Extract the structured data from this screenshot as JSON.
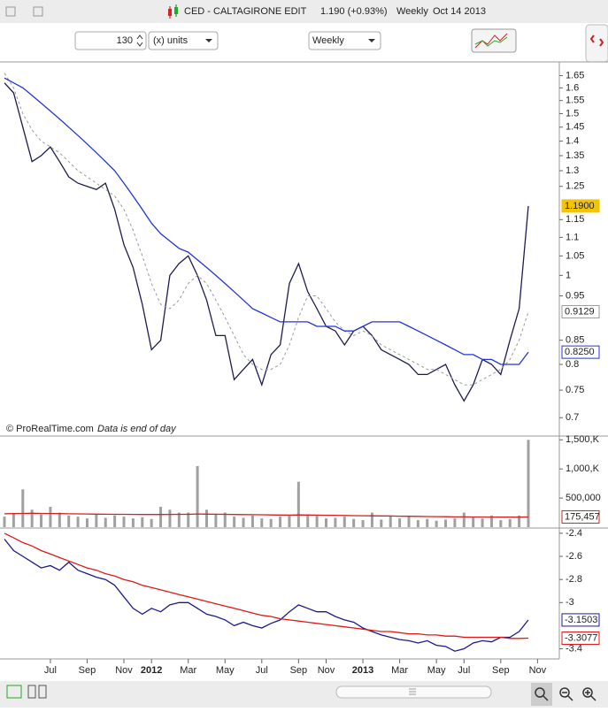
{
  "header": {
    "symbol": "CED - CALTAGIRONE EDIT",
    "quote": "1.190 (+0.93%)",
    "period": "Weekly",
    "date": "Oct 14 2013"
  },
  "toolbar": {
    "units_count": "130",
    "units": "(x) units",
    "period": "Weekly"
  },
  "credit": {
    "site": "© ProRealTime.com",
    "note": "Data is end of day"
  },
  "chart_data": [
    {
      "type": "line",
      "log_scale": true,
      "grid": false,
      "ylim": [
        0.67,
        1.7
      ],
      "yticks": [
        0.7,
        0.75,
        0.8,
        0.85,
        0.95,
        1,
        1.05,
        1.1,
        1.15,
        1.25,
        1.3,
        1.35,
        1.4,
        1.45,
        1.5,
        1.55,
        1.6,
        1.65
      ],
      "series": [
        {
          "color": "#1c1c50",
          "badge": {
            "value": 1.19,
            "label": "1.1900"
          },
          "badge_fill": "#f5c300",
          "values": [
            1.62,
            1.58,
            1.45,
            1.33,
            1.35,
            1.38,
            1.33,
            1.28,
            1.26,
            1.25,
            1.24,
            1.26,
            1.18,
            1.08,
            1.02,
            0.93,
            0.83,
            0.85,
            1.0,
            1.03,
            1.05,
            1.0,
            0.94,
            0.86,
            0.86,
            0.77,
            0.79,
            0.81,
            0.76,
            0.82,
            0.84,
            0.98,
            1.03,
            0.96,
            0.92,
            0.88,
            0.87,
            0.84,
            0.87,
            0.88,
            0.86,
            0.83,
            0.82,
            0.81,
            0.8,
            0.78,
            0.78,
            0.79,
            0.8,
            0.76,
            0.73,
            0.76,
            0.81,
            0.8,
            0.78,
            0.85,
            0.92,
            1.19,
            null
          ]
        },
        {
          "color": "#9a9a9a",
          "dash": true,
          "badge": {
            "value": 0.9129,
            "label": "0.9129"
          },
          "values": [
            1.66,
            1.6,
            1.5,
            1.44,
            1.4,
            1.38,
            1.36,
            1.33,
            1.3,
            1.28,
            1.26,
            1.24,
            1.22,
            1.18,
            1.12,
            1.05,
            0.98,
            0.93,
            0.92,
            0.94,
            0.98,
            1.0,
            0.98,
            0.94,
            0.9,
            0.86,
            0.82,
            0.8,
            0.79,
            0.79,
            0.8,
            0.84,
            0.9,
            0.95,
            0.95,
            0.92,
            0.89,
            0.87,
            0.86,
            0.87,
            0.86,
            0.84,
            0.83,
            0.82,
            0.81,
            0.8,
            0.79,
            0.79,
            0.78,
            0.77,
            0.76,
            0.76,
            0.77,
            0.78,
            0.79,
            0.81,
            0.85,
            0.9129,
            null
          ]
        },
        {
          "color": "#2233dd",
          "badge": {
            "value": 0.825,
            "label": "0.8250"
          },
          "values": [
            1.64,
            1.62,
            1.6,
            1.57,
            1.54,
            1.51,
            1.48,
            1.45,
            1.42,
            1.39,
            1.36,
            1.33,
            1.3,
            1.26,
            1.22,
            1.18,
            1.14,
            1.11,
            1.09,
            1.07,
            1.06,
            1.04,
            1.02,
            1.0,
            0.98,
            0.96,
            0.94,
            0.92,
            0.91,
            0.9,
            0.89,
            0.89,
            0.89,
            0.89,
            0.88,
            0.88,
            0.88,
            0.87,
            0.87,
            0.88,
            0.89,
            0.89,
            0.89,
            0.89,
            0.88,
            0.87,
            0.86,
            0.85,
            0.84,
            0.83,
            0.82,
            0.82,
            0.81,
            0.81,
            0.8,
            0.8,
            0.8,
            0.825,
            null
          ]
        }
      ]
    },
    {
      "type": "bar",
      "grid": false,
      "ylim": [
        0,
        1550000
      ],
      "yticks": [
        {
          "value": 500000,
          "label": "500,000"
        },
        {
          "value": 1000000,
          "label": "1,000,K"
        },
        {
          "value": 1500000,
          "label": "1,500,K"
        }
      ],
      "series": [
        {
          "type": "bar",
          "color": "#a0a0a0",
          "values": [
            180000,
            240000,
            650000,
            300000,
            220000,
            350000,
            250000,
            200000,
            180000,
            150000,
            220000,
            160000,
            200000,
            180000,
            150000,
            170000,
            140000,
            350000,
            300000,
            250000,
            250000,
            1050000,
            300000,
            220000,
            250000,
            180000,
            160000,
            200000,
            150000,
            140000,
            180000,
            200000,
            780000,
            220000,
            200000,
            150000,
            160000,
            180000,
            140000,
            120000,
            250000,
            130000,
            200000,
            150000,
            180000,
            120000,
            140000,
            110000,
            130000,
            150000,
            250000,
            180000,
            150000,
            200000,
            120000,
            140000,
            200000,
            1500000,
            null
          ]
        },
        {
          "type": "line",
          "color": "#d42020",
          "badge": {
            "value": 175457,
            "label": "175,457"
          },
          "values": [
            230000,
            232000,
            236000,
            238000,
            236000,
            234000,
            232000,
            230000,
            228000,
            226000,
            224000,
            222000,
            221000,
            220000,
            219000,
            218000,
            217000,
            218000,
            219000,
            220000,
            221000,
            226000,
            224000,
            222000,
            220000,
            218000,
            216000,
            214000,
            212000,
            210000,
            208000,
            206000,
            210000,
            208000,
            206000,
            204000,
            202000,
            200000,
            198000,
            196000,
            195000,
            193000,
            191000,
            189000,
            187000,
            185000,
            183000,
            181000,
            179000,
            177000,
            176000,
            175000,
            174000,
            173000,
            172000,
            171000,
            171000,
            175457,
            null
          ]
        }
      ]
    },
    {
      "type": "line",
      "grid": false,
      "ylim": [
        -3.48,
        -2.37
      ],
      "yticks": [
        -2.4,
        -2.6,
        -2.8,
        -3,
        -3.4
      ],
      "categories": [
        null,
        null,
        null,
        null,
        null,
        "Jul",
        null,
        null,
        null,
        "Sep",
        null,
        null,
        null,
        "Nov",
        null,
        null,
        "2012",
        null,
        null,
        null,
        "Mar",
        null,
        null,
        null,
        "May",
        null,
        null,
        null,
        "Jul",
        null,
        null,
        null,
        "Sep",
        null,
        null,
        "Nov",
        null,
        null,
        null,
        "2013",
        null,
        null,
        null,
        "Mar",
        null,
        null,
        null,
        "May",
        null,
        null,
        "Jul",
        null,
        null,
        null,
        "Sep",
        null,
        null,
        null,
        "Nov"
      ],
      "series": [
        {
          "color": "#1a1a8c",
          "badge": -3.1503,
          "values": [
            -2.45,
            -2.55,
            -2.6,
            -2.65,
            -2.7,
            -2.68,
            -2.72,
            -2.65,
            -2.72,
            -2.75,
            -2.78,
            -2.8,
            -2.85,
            -2.95,
            -3.05,
            -3.1,
            -3.05,
            -3.08,
            -3.02,
            -3.0,
            -3.0,
            -3.05,
            -3.1,
            -3.12,
            -3.15,
            -3.2,
            -3.17,
            -3.2,
            -3.22,
            -3.18,
            -3.15,
            -3.08,
            -3.02,
            -3.05,
            -3.08,
            -3.08,
            -3.12,
            -3.15,
            -3.17,
            -3.22,
            -3.25,
            -3.28,
            -3.3,
            -3.32,
            -3.33,
            -3.35,
            -3.33,
            -3.37,
            -3.38,
            -3.42,
            -3.4,
            -3.35,
            -3.33,
            -3.34,
            -3.3,
            -3.3,
            -3.25,
            -3.1503,
            null
          ]
        },
        {
          "color": "#e01818",
          "badge": -3.3077,
          "values": [
            -2.4,
            -2.44,
            -2.48,
            -2.51,
            -2.55,
            -2.58,
            -2.61,
            -2.64,
            -2.67,
            -2.7,
            -2.72,
            -2.75,
            -2.77,
            -2.8,
            -2.82,
            -2.85,
            -2.87,
            -2.89,
            -2.91,
            -2.93,
            -2.95,
            -2.97,
            -2.99,
            -3.01,
            -3.03,
            -3.05,
            -3.07,
            -3.09,
            -3.11,
            -3.12,
            -3.14,
            -3.15,
            -3.16,
            -3.17,
            -3.18,
            -3.19,
            -3.2,
            -3.21,
            -3.22,
            -3.23,
            -3.24,
            -3.25,
            -3.25,
            -3.26,
            -3.27,
            -3.27,
            -3.28,
            -3.28,
            -3.29,
            -3.29,
            -3.3,
            -3.3,
            -3.3,
            -3.3,
            -3.3,
            -3.31,
            -3.31,
            -3.3077,
            null
          ]
        }
      ]
    }
  ]
}
